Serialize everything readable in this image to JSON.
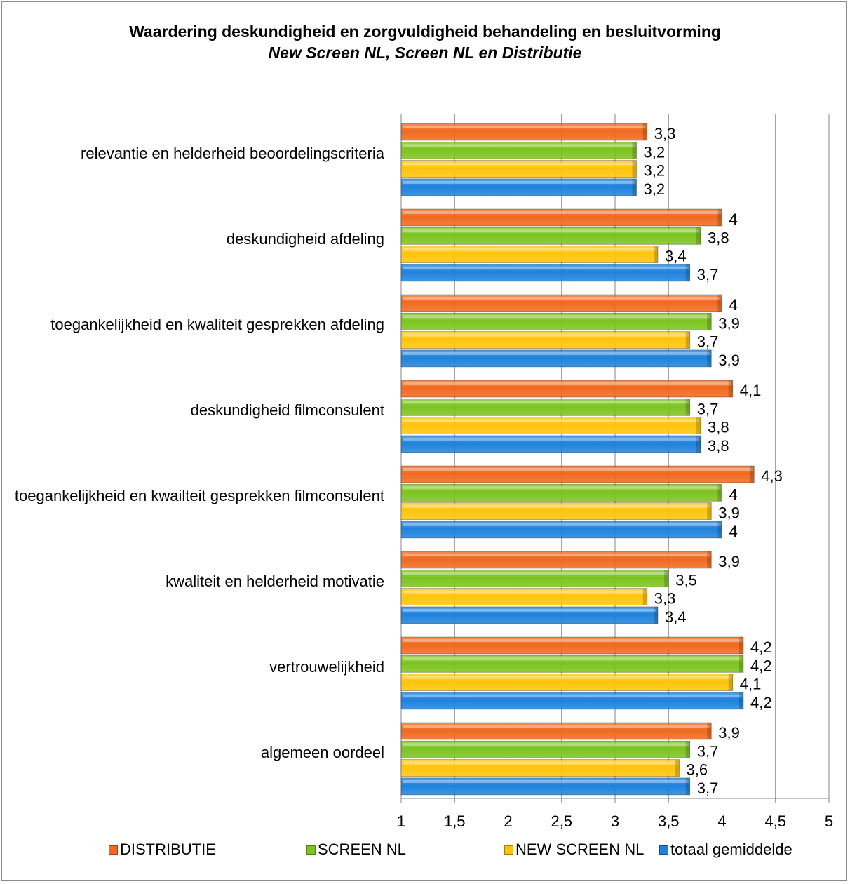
{
  "chart_data": {
    "type": "bar",
    "orientation": "horizontal",
    "title": "Waardering deskundigheid en zorgvuldigheid behandeling en besluitvorming",
    "subtitle": "New Screen NL, Screen NL en Distributie",
    "categories": [
      "relevantie en helderheid beoordelingscriteria",
      "deskundigheid afdeling",
      "toegankelijkheid en kwaliteit gesprekken afdeling",
      "deskundigheid filmconsulent",
      "toegankelijkheid en kwailteit gesprekken filmconsulent",
      "kwaliteit en helderheid motivatie",
      "vertrouwelijkheid",
      "algemeen oordeel"
    ],
    "series": [
      {
        "name": "DISTRIBUTIE",
        "color": "#f0691e",
        "values": [
          3.3,
          4,
          4,
          4.1,
          4.3,
          3.9,
          4.2,
          3.9
        ],
        "labels": [
          "3,3",
          "4",
          "4",
          "4,1",
          "4,3",
          "3,9",
          "4,2",
          "3,9"
        ]
      },
      {
        "name": "SCREEN NL",
        "color": "#7cc31e",
        "values": [
          3.2,
          3.8,
          3.9,
          3.7,
          4,
          3.5,
          4.2,
          3.7
        ],
        "labels": [
          "3,2",
          "3,8",
          "3,9",
          "3,7",
          "4",
          "3,5",
          "4,2",
          "3,7"
        ]
      },
      {
        "name": "NEW SCREEN NL",
        "color": "#ffc40a",
        "values": [
          3.2,
          3.4,
          3.7,
          3.8,
          3.9,
          3.3,
          4.1,
          3.6
        ],
        "labels": [
          "3,2",
          "3,4",
          "3,7",
          "3,8",
          "3,9",
          "3,3",
          "4,1",
          "3,6"
        ]
      },
      {
        "name": "totaal gemiddelde",
        "color": "#1e82dc",
        "values": [
          3.2,
          3.7,
          3.9,
          3.8,
          4,
          3.4,
          4.2,
          3.7
        ],
        "labels": [
          "3,2",
          "3,7",
          "3,9",
          "3,8",
          "4",
          "3,4",
          "4,2",
          "3,7"
        ]
      }
    ],
    "xlim": [
      1,
      5
    ],
    "xticks": [
      1,
      1.5,
      2,
      2.5,
      3,
      3.5,
      4,
      4.5,
      5
    ],
    "xtick_labels": [
      "1",
      "1,5",
      "2",
      "2,5",
      "3",
      "3,5",
      "4",
      "4,5",
      "5"
    ],
    "grid": "vertical",
    "legend_position": "bottom"
  }
}
